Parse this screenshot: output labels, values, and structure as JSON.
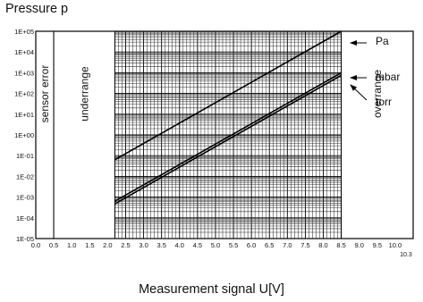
{
  "chart_data": {
    "type": "line",
    "title": "Pressure p",
    "xlabel": "Measurement signal U[V]",
    "ylabel": "",
    "y_scale": "log",
    "xlim": [
      0,
      10.5
    ],
    "ylim": [
      1e-05,
      100000
    ],
    "x_ticks": [
      "0.0",
      "0.5",
      "1.0",
      "1.5",
      "2.0",
      "2.5",
      "3.0",
      "3.5",
      "4.0",
      "4.5",
      "5.0",
      "5.5",
      "6.0",
      "6.5",
      "7.0",
      "7.5",
      "8.0",
      "8.5",
      "9.0",
      "9.5",
      "10.0"
    ],
    "x_extra_tick": "10.3",
    "y_ticks": [
      "1E+05",
      "1E+04",
      "1E+03",
      "1E+02",
      "1E+01",
      "1E+00",
      "1E-01",
      "1E-02",
      "1E-03",
      "1E-04",
      "1E-05"
    ],
    "grid": true,
    "regions": [
      {
        "label": "sensor error",
        "x": [
          0,
          0.5
        ]
      },
      {
        "label": "underrange",
        "x": [
          0.5,
          2.2
        ]
      },
      {
        "label": "overrange",
        "x": [
          8.5,
          10.5
        ]
      }
    ],
    "series": [
      {
        "name": "Pa",
        "x": [
          2.2,
          8.5
        ],
        "y": [
          0.0631,
          100000
        ]
      },
      {
        "name": "mbar",
        "x": [
          2.2,
          8.5
        ],
        "y": [
          0.000631,
          1000
        ]
      },
      {
        "name": "torr",
        "x": [
          2.2,
          8.5
        ],
        "y": [
          0.000473,
          750
        ]
      }
    ]
  }
}
